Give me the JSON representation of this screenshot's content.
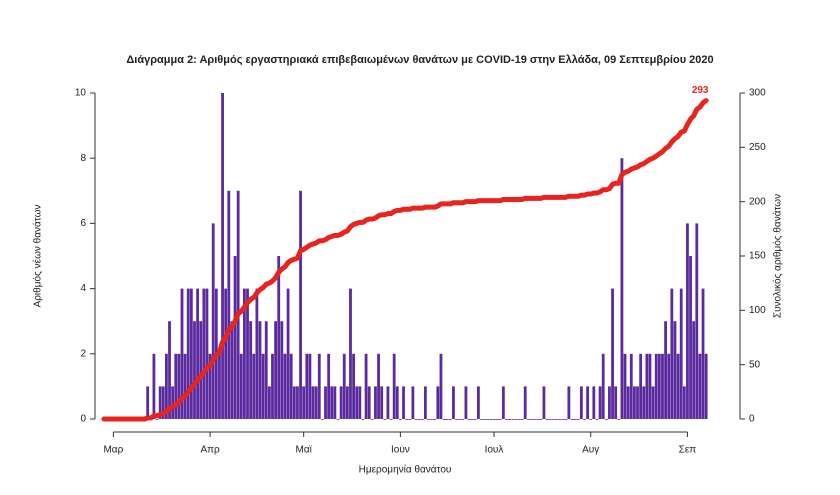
{
  "chart_data": {
    "type": "bar_line",
    "title": "Διάγραμμα 2: Αριθμός εργαστηριακά επιβεβαιωμένων θανάτων με COVID-19 στην Ελλάδα, 09 Σεπτεμβρίου 2020",
    "xlabel": "Ημερομηνία θανάτου",
    "ylabel": "Αριθμός νέων θανάτων",
    "y2label": "Συνολικός αριθμός θανάτων",
    "categories": [
      null,
      null,
      null,
      "Μαρ",
      null,
      null,
      null,
      null,
      null,
      null,
      null,
      null,
      null,
      null,
      null,
      null,
      null,
      null,
      null,
      null,
      null,
      null,
      null,
      null,
      null,
      null,
      null,
      null,
      null,
      null,
      null,
      null,
      null,
      null,
      "Απρ",
      null,
      null,
      null,
      null,
      null,
      null,
      null,
      null,
      null,
      null,
      null,
      null,
      null,
      null,
      null,
      null,
      null,
      null,
      null,
      null,
      null,
      null,
      null,
      null,
      null,
      null,
      null,
      null,
      null,
      "Μαϊ",
      null,
      null,
      null,
      null,
      null,
      null,
      null,
      null,
      null,
      null,
      null,
      null,
      null,
      null,
      null,
      null,
      null,
      null,
      null,
      null,
      null,
      null,
      null,
      null,
      null,
      null,
      null,
      null,
      null,
      null,
      "Ιουν",
      null,
      null,
      null,
      null,
      null,
      null,
      null,
      null,
      null,
      null,
      null,
      null,
      null,
      null,
      null,
      null,
      null,
      null,
      null,
      null,
      null,
      null,
      null,
      null,
      null,
      null,
      null,
      null,
      null,
      "Ιουλ",
      null,
      null,
      null,
      null,
      null,
      null,
      null,
      null,
      null,
      null,
      null,
      null,
      null,
      null,
      null,
      null,
      null,
      null,
      null,
      null,
      null,
      null,
      null,
      null,
      null,
      null,
      null,
      null,
      null,
      null,
      "Αυγ",
      null,
      null,
      null,
      null,
      null,
      null,
      null,
      null,
      null,
      null,
      null,
      null,
      null,
      null,
      null,
      null,
      null,
      null,
      null,
      null,
      null,
      null,
      null,
      null,
      null,
      null,
      null,
      null,
      null,
      null,
      "Σεπ",
      null,
      null,
      null,
      null,
      null,
      null
    ],
    "series": [
      {
        "color": "#5b2a9e",
        "values": [
          0,
          0,
          0,
          0,
          0,
          0,
          0,
          0,
          0,
          0,
          0,
          0,
          0,
          0,
          1,
          0,
          2,
          0,
          1,
          1,
          2,
          3,
          1,
          2,
          2,
          4,
          2,
          4,
          4,
          3,
          4,
          3,
          4,
          4,
          2,
          6,
          4,
          2,
          10,
          4,
          7,
          3,
          5,
          7,
          2,
          4,
          4,
          3,
          2,
          4,
          3,
          2,
          3,
          1,
          2,
          3,
          5,
          3,
          2,
          4,
          2,
          1,
          1,
          7,
          1,
          2,
          2,
          1,
          1,
          2,
          0,
          1,
          2,
          1,
          1,
          0,
          1,
          2,
          1,
          4,
          2,
          1,
          1,
          0,
          2,
          1,
          0,
          1,
          2,
          1,
          0,
          1,
          0,
          2,
          1,
          0,
          1,
          0,
          0,
          1,
          0,
          0,
          0,
          1,
          0,
          0,
          0,
          1,
          2,
          0,
          0,
          0,
          1,
          0,
          0,
          0,
          1,
          0,
          0,
          0,
          1,
          0,
          0,
          0,
          0,
          0,
          0,
          0,
          1,
          0,
          0,
          0,
          0,
          0,
          0,
          1,
          0,
          0,
          0,
          0,
          0,
          1,
          0,
          0,
          0,
          0,
          0,
          0,
          0,
          1,
          0,
          0,
          0,
          1,
          0,
          1,
          0,
          1,
          0,
          1,
          2,
          0,
          1,
          4,
          1,
          0,
          8,
          2,
          1,
          2,
          1,
          1,
          2,
          1,
          2,
          2,
          1,
          2,
          2,
          2,
          3,
          2,
          4,
          3,
          2,
          4,
          1,
          6,
          5,
          3,
          6,
          2,
          4,
          2
        ]
      },
      {
        "color": "#e8241e",
        "axis": "y2",
        "values": [
          0,
          0,
          0,
          0,
          0,
          0,
          0,
          0,
          0,
          0,
          0,
          0,
          0,
          0,
          1,
          1,
          3,
          3,
          4,
          5,
          7,
          10,
          11,
          13,
          15,
          19,
          21,
          25,
          29,
          32,
          36,
          39,
          43,
          47,
          49,
          55,
          59,
          61,
          71,
          75,
          82,
          85,
          90,
          97,
          99,
          103,
          107,
          110,
          112,
          116,
          119,
          121,
          124,
          125,
          127,
          130,
          135,
          138,
          140,
          144,
          146,
          147,
          148,
          155,
          156,
          158,
          160,
          161,
          162,
          164,
          164,
          165,
          167,
          168,
          169,
          169,
          170,
          172,
          173,
          177,
          179,
          180,
          181,
          181,
          183,
          184,
          184,
          185,
          187,
          188,
          188,
          189,
          189,
          191,
          192,
          192,
          193,
          193,
          193,
          194,
          194,
          194,
          194,
          195,
          195,
          195,
          195,
          196,
          198,
          198,
          198,
          198,
          199,
          199,
          199,
          199,
          200,
          200,
          200,
          200,
          201,
          201,
          201,
          201,
          201,
          201,
          201,
          201,
          202,
          202,
          202,
          202,
          202,
          202,
          202,
          203,
          203,
          203,
          203,
          203,
          203,
          204,
          204,
          204,
          204,
          204,
          204,
          204,
          204,
          205,
          205,
          205,
          205,
          206,
          206,
          207,
          207,
          208,
          208,
          209,
          211,
          211,
          212,
          216,
          217,
          217,
          225,
          227,
          228,
          230,
          231,
          232,
          234,
          235,
          237,
          239,
          240,
          242,
          244,
          246,
          249,
          251,
          255,
          258,
          260,
          264,
          265,
          271,
          276,
          279,
          285,
          287,
          291,
          293
        ]
      }
    ],
    "ylim": [
      0,
      10
    ],
    "yticks": [
      0,
      2,
      4,
      6,
      8,
      10
    ],
    "y2lim": [
      0,
      300
    ],
    "y2ticks": [
      0,
      50,
      100,
      150,
      200,
      250,
      300
    ]
  }
}
